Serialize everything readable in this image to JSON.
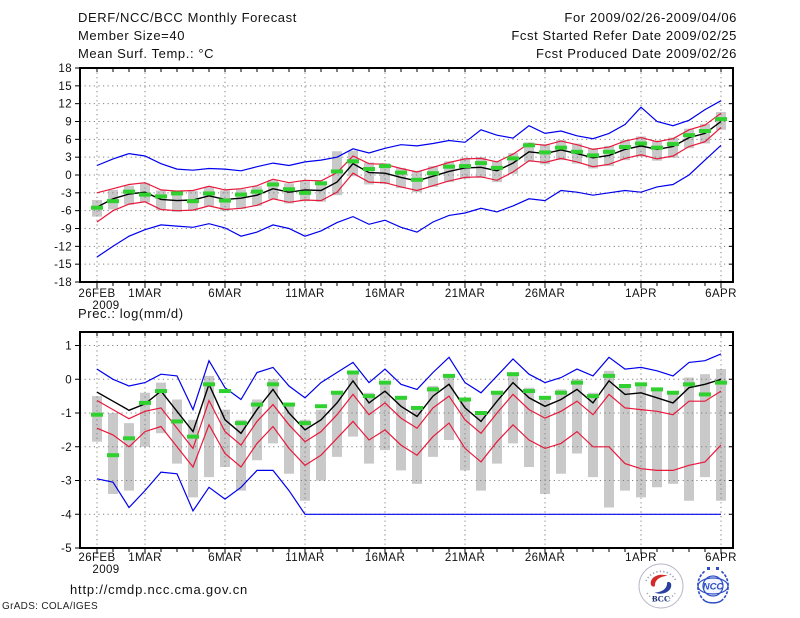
{
  "header": {
    "left": [
      "DERF/NCC/BCC Monthly Forecast",
      "Member Size=40",
      "Mean Surf. Temp.: °C"
    ],
    "right": [
      "For 2009/02/26-2009/04/06",
      "Fcst Started Refer Date 2009/02/25",
      "Fcst Produced Date 2009/02/26"
    ]
  },
  "footer": {
    "url": "http://cmdp.ncc.cma.gov.cn",
    "credit": "GrADS: COLA/IGES",
    "logos": [
      {
        "label": "BCC"
      },
      {
        "label": "NCC"
      }
    ]
  },
  "colors": {
    "blue": "#0000ee",
    "red": "#e8193c",
    "green": "#2fd12f",
    "black": "#000000",
    "bar_gray": "#c9c9c9",
    "grid": "#808080",
    "frame": "#000000",
    "logo_blue": "#2e4fc4",
    "logo_navy": "#1a2f7a",
    "logo_red": "#d42a2a"
  },
  "chart_data": [
    {
      "type": "line",
      "name": "temperature",
      "title": "Mean Surf. Temp.: °C",
      "n_days": 40,
      "x_tick_days": [
        0,
        3,
        8,
        13,
        18,
        23,
        28,
        34,
        39
      ],
      "x_tick_labels": [
        "26FEB",
        "1MAR",
        "6MAR",
        "11MAR",
        "16MAR",
        "21MAR",
        "26MAR",
        "1APR",
        "6APR"
      ],
      "x_year_label": "2009",
      "ylim": [
        -18,
        18
      ],
      "yticks": [
        18,
        15,
        12,
        9,
        6,
        3,
        0,
        -3,
        -6,
        -9,
        -12,
        -15,
        -18
      ],
      "grid": "dotted",
      "legend": "none",
      "series": [
        {
          "name": "ensemble-max",
          "color": "blue",
          "values": [
            1.6,
            2.7,
            3.6,
            3.2,
            1.9,
            1.0,
            0.8,
            1.1,
            1.0,
            0.7,
            1.4,
            2.0,
            1.6,
            2.2,
            2.5,
            3.0,
            4.4,
            3.7,
            4.5,
            5.1,
            4.9,
            5.3,
            5.8,
            5.5,
            7.6,
            6.7,
            6.2,
            8.3,
            7.0,
            7.4,
            6.6,
            6.1,
            7.0,
            8.5,
            11.4,
            9.0,
            8.3,
            9.2,
            11.0,
            12.5
          ]
        },
        {
          "name": "plus-std",
          "color": "red",
          "values": [
            -3.0,
            -2.3,
            -1.6,
            -1.3,
            -2.5,
            -2.7,
            -2.6,
            -1.9,
            -2.5,
            -2.3,
            -1.8,
            -0.7,
            -1.3,
            -0.9,
            -1.0,
            0.4,
            3.2,
            1.9,
            1.8,
            1.1,
            0.5,
            1.3,
            2.1,
            2.7,
            2.8,
            2.2,
            3.5,
            5.3,
            5.0,
            5.7,
            5.1,
            4.3,
            4.7,
            5.7,
            6.3,
            5.6,
            6.1,
            7.6,
            8.4,
            10.4
          ]
        },
        {
          "name": "ensemble-mean",
          "color": "black",
          "values": [
            -5.4,
            -4.0,
            -3.2,
            -2.9,
            -4.1,
            -4.3,
            -4.2,
            -3.5,
            -4.1,
            -3.9,
            -3.4,
            -2.3,
            -2.9,
            -2.5,
            -2.6,
            -1.2,
            1.9,
            0.4,
            0.3,
            -0.4,
            -1.0,
            -0.2,
            0.6,
            1.2,
            1.3,
            0.7,
            2.0,
            3.9,
            3.6,
            4.2,
            3.6,
            2.9,
            3.3,
            4.3,
            4.9,
            4.3,
            4.8,
            6.3,
            7.0,
            9.0
          ]
        },
        {
          "name": "minus-std",
          "color": "red",
          "values": [
            -7.9,
            -6.0,
            -4.9,
            -4.5,
            -5.8,
            -6.0,
            -5.9,
            -5.2,
            -5.8,
            -5.6,
            -5.1,
            -4.0,
            -4.6,
            -4.2,
            -4.3,
            -2.9,
            0.3,
            -1.2,
            -1.3,
            -2.0,
            -2.6,
            -1.8,
            -1.0,
            -0.4,
            -0.3,
            -0.9,
            0.5,
            2.4,
            2.1,
            2.8,
            2.2,
            1.4,
            1.8,
            2.8,
            3.4,
            2.7,
            3.2,
            4.8,
            5.6,
            8.0
          ]
        },
        {
          "name": "ensemble-min",
          "color": "blue",
          "values": [
            -13.8,
            -12.0,
            -10.3,
            -9.2,
            -8.4,
            -8.6,
            -8.8,
            -8.2,
            -8.9,
            -10.3,
            -9.6,
            -8.4,
            -9.0,
            -10.3,
            -9.4,
            -8.0,
            -7.0,
            -8.3,
            -7.6,
            -8.8,
            -9.6,
            -7.9,
            -6.8,
            -6.4,
            -5.6,
            -6.2,
            -5.2,
            -4.0,
            -4.3,
            -2.6,
            -2.9,
            -3.4,
            -3.0,
            -2.6,
            -2.9,
            -2.0,
            -1.6,
            0.0,
            2.5,
            5.0
          ]
        }
      ],
      "bars": {
        "name": "member-spread",
        "low": [
          -7.0,
          -5.8,
          -5.0,
          -4.6,
          -5.9,
          -6.2,
          -6.0,
          -5.3,
          -6.0,
          -5.7,
          -5.2,
          -4.1,
          -4.8,
          -4.4,
          -4.5,
          -3.4,
          -0.2,
          -1.6,
          -1.5,
          -2.2,
          -2.9,
          -2.0,
          -1.2,
          -0.6,
          -0.5,
          -1.2,
          0.2,
          2.2,
          1.8,
          2.5,
          1.9,
          1.1,
          1.5,
          2.5,
          3.1,
          2.4,
          2.9,
          4.5,
          5.3,
          7.6
        ],
        "high": [
          -4.2,
          -2.5,
          -1.8,
          -1.4,
          -2.6,
          -2.8,
          -2.7,
          -2.0,
          -2.6,
          -2.4,
          -1.9,
          -0.8,
          -1.4,
          -1.0,
          -1.1,
          4.0,
          4.1,
          2.1,
          2.0,
          1.2,
          0.7,
          1.5,
          2.3,
          2.9,
          3.0,
          2.4,
          3.7,
          5.5,
          5.2,
          5.9,
          5.3,
          4.5,
          4.9,
          5.9,
          6.5,
          5.8,
          6.3,
          7.8,
          8.6,
          10.6
        ]
      },
      "markers": {
        "name": "observation-dash",
        "color": "green",
        "values": [
          -5.5,
          -4.4,
          -2.8,
          -3.3,
          -3.6,
          -3.1,
          -4.4,
          -3.1,
          -4.3,
          -3.3,
          -2.8,
          -1.6,
          -2.4,
          -3.0,
          -1.4,
          0.6,
          2.3,
          1.0,
          1.5,
          0.4,
          -0.8,
          0.3,
          1.4,
          1.5,
          2.0,
          1.2,
          2.8,
          5.0,
          3.8,
          4.6,
          3.9,
          3.3,
          3.9,
          4.7,
          5.3,
          4.6,
          5.2,
          6.7,
          7.4,
          9.4
        ]
      }
    },
    {
      "type": "line",
      "name": "precipitation",
      "title": "Prec.: log(mm/d)",
      "n_days": 40,
      "x_tick_days": [
        0,
        3,
        8,
        13,
        18,
        23,
        28,
        34,
        39
      ],
      "x_tick_labels": [
        "26FEB",
        "1MAR",
        "6MAR",
        "11MAR",
        "16MAR",
        "21MAR",
        "26MAR",
        "1APR",
        "6APR"
      ],
      "x_year_label": "2009",
      "ylim": [
        -5,
        1.4
      ],
      "yticks": [
        1,
        0,
        -1,
        -2,
        -3,
        -4,
        -5
      ],
      "grid": "dotted",
      "legend": "none",
      "series": [
        {
          "name": "ensemble-max",
          "color": "blue",
          "values": [
            0.3,
            0.0,
            -0.2,
            -0.1,
            0.15,
            0.1,
            -0.9,
            0.55,
            -0.25,
            -0.6,
            0.2,
            0.35,
            -0.2,
            -0.55,
            -0.1,
            0.2,
            0.5,
            -0.1,
            0.3,
            -0.15,
            -0.3,
            0.2,
            0.65,
            -0.1,
            -0.4,
            0.1,
            0.6,
            0.15,
            -0.1,
            0.05,
            0.3,
            0.1,
            0.65,
            0.3,
            0.35,
            0.25,
            0.1,
            0.5,
            0.55,
            0.75
          ]
        },
        {
          "name": "ensemble-mean",
          "color": "black",
          "values": [
            -0.38,
            -0.65,
            -0.92,
            -0.73,
            -0.35,
            -0.95,
            -1.55,
            -0.15,
            -1.2,
            -1.6,
            -0.9,
            -0.3,
            -1.0,
            -1.5,
            -1.2,
            -0.7,
            -0.05,
            -0.7,
            -0.35,
            -0.8,
            -1.1,
            -0.5,
            -0.15,
            -0.85,
            -1.25,
            -0.65,
            -0.1,
            -0.55,
            -0.8,
            -0.6,
            -0.3,
            -0.7,
            -0.05,
            -0.45,
            -0.4,
            -0.55,
            -0.7,
            -0.25,
            -0.15,
            0.0
          ]
        },
        {
          "name": "plus-std",
          "color": "red",
          "values": [
            -0.63,
            -0.9,
            -1.17,
            -0.95,
            -0.85,
            -1.45,
            -2.05,
            -0.63,
            -1.55,
            -1.95,
            -1.25,
            -0.75,
            -1.35,
            -1.85,
            -1.55,
            -1.05,
            -0.45,
            -1.05,
            -0.7,
            -1.15,
            -1.45,
            -0.85,
            -0.5,
            -1.2,
            -1.6,
            -1.0,
            -0.45,
            -0.9,
            -1.15,
            -0.95,
            -0.65,
            -1.05,
            -0.45,
            -0.85,
            -0.9,
            -0.95,
            -1.05,
            -0.65,
            -0.65,
            -0.35
          ]
        },
        {
          "name": "minus-std",
          "color": "red",
          "values": [
            -1.45,
            -1.65,
            -2.0,
            -1.55,
            -1.4,
            -2.0,
            -2.6,
            -1.35,
            -2.2,
            -2.6,
            -1.9,
            -1.4,
            -2.05,
            -2.55,
            -2.25,
            -1.75,
            -1.25,
            -1.8,
            -1.5,
            -1.95,
            -2.25,
            -1.7,
            -1.3,
            -2.05,
            -2.45,
            -1.85,
            -1.35,
            -1.8,
            -2.05,
            -1.9,
            -1.55,
            -2.0,
            -2.0,
            -2.5,
            -2.65,
            -2.7,
            -2.7,
            -2.55,
            -2.45,
            -1.95
          ]
        },
        {
          "name": "ensemble-min",
          "color": "blue",
          "values": [
            -2.95,
            -3.05,
            -3.8,
            -3.3,
            -2.75,
            -2.8,
            -3.9,
            -3.2,
            -3.55,
            -3.2,
            -2.7,
            -2.7,
            -3.3,
            -4.0,
            -4.0,
            -4.0,
            -4.0,
            -4.0,
            -4.0,
            -4.0,
            -4.0,
            -4.0,
            -4.0,
            -4.0,
            -4.0,
            -4.0,
            -4.0,
            -4.0,
            -4.0,
            -4.0,
            -4.0,
            -4.0,
            -4.0,
            -4.0,
            -4.0,
            -4.0,
            -4.0,
            -4.0,
            -4.0,
            -4.0
          ]
        }
      ],
      "bars": {
        "name": "member-spread",
        "low": [
          -1.85,
          -3.4,
          -3.3,
          -2.0,
          -1.6,
          -2.5,
          -3.5,
          -2.9,
          -2.6,
          -3.3,
          -2.4,
          -1.9,
          -2.8,
          -3.6,
          -3.0,
          -2.3,
          -1.7,
          -2.5,
          -2.1,
          -2.7,
          -3.1,
          -2.3,
          -1.8,
          -2.7,
          -3.3,
          -2.5,
          -1.9,
          -2.6,
          -3.4,
          -2.8,
          -2.2,
          -2.9,
          -3.8,
          -3.3,
          -3.5,
          -3.2,
          -3.1,
          -3.6,
          -2.9,
          -3.6
        ],
        "high": [
          -0.5,
          -1.0,
          -1.3,
          -0.4,
          -0.1,
          -0.6,
          -1.2,
          0.1,
          -0.9,
          -1.2,
          -0.6,
          0.0,
          -0.7,
          -1.2,
          -0.9,
          -0.4,
          0.2,
          -0.4,
          -0.05,
          -0.5,
          -0.8,
          -0.2,
          0.1,
          -0.55,
          -0.95,
          -0.35,
          0.2,
          -0.25,
          -0.5,
          -0.3,
          0.0,
          -0.4,
          0.25,
          -0.15,
          -0.1,
          -0.25,
          -0.4,
          0.05,
          0.15,
          0.3
        ]
      },
      "markers": {
        "name": "observation-dash",
        "color": "green",
        "values": [
          -1.05,
          -2.25,
          -1.75,
          -0.7,
          -0.35,
          -1.25,
          -1.7,
          -0.15,
          -0.35,
          -1.3,
          -0.75,
          -0.15,
          -0.75,
          -1.3,
          -0.8,
          -0.4,
          0.2,
          -0.5,
          -0.1,
          -0.55,
          -0.85,
          -0.3,
          0.1,
          -0.6,
          -1.0,
          -0.4,
          0.15,
          -0.35,
          -0.55,
          -0.4,
          -0.1,
          -0.5,
          0.1,
          -0.2,
          -0.15,
          -0.3,
          -0.4,
          -0.15,
          -0.45,
          -0.1
        ]
      }
    }
  ]
}
